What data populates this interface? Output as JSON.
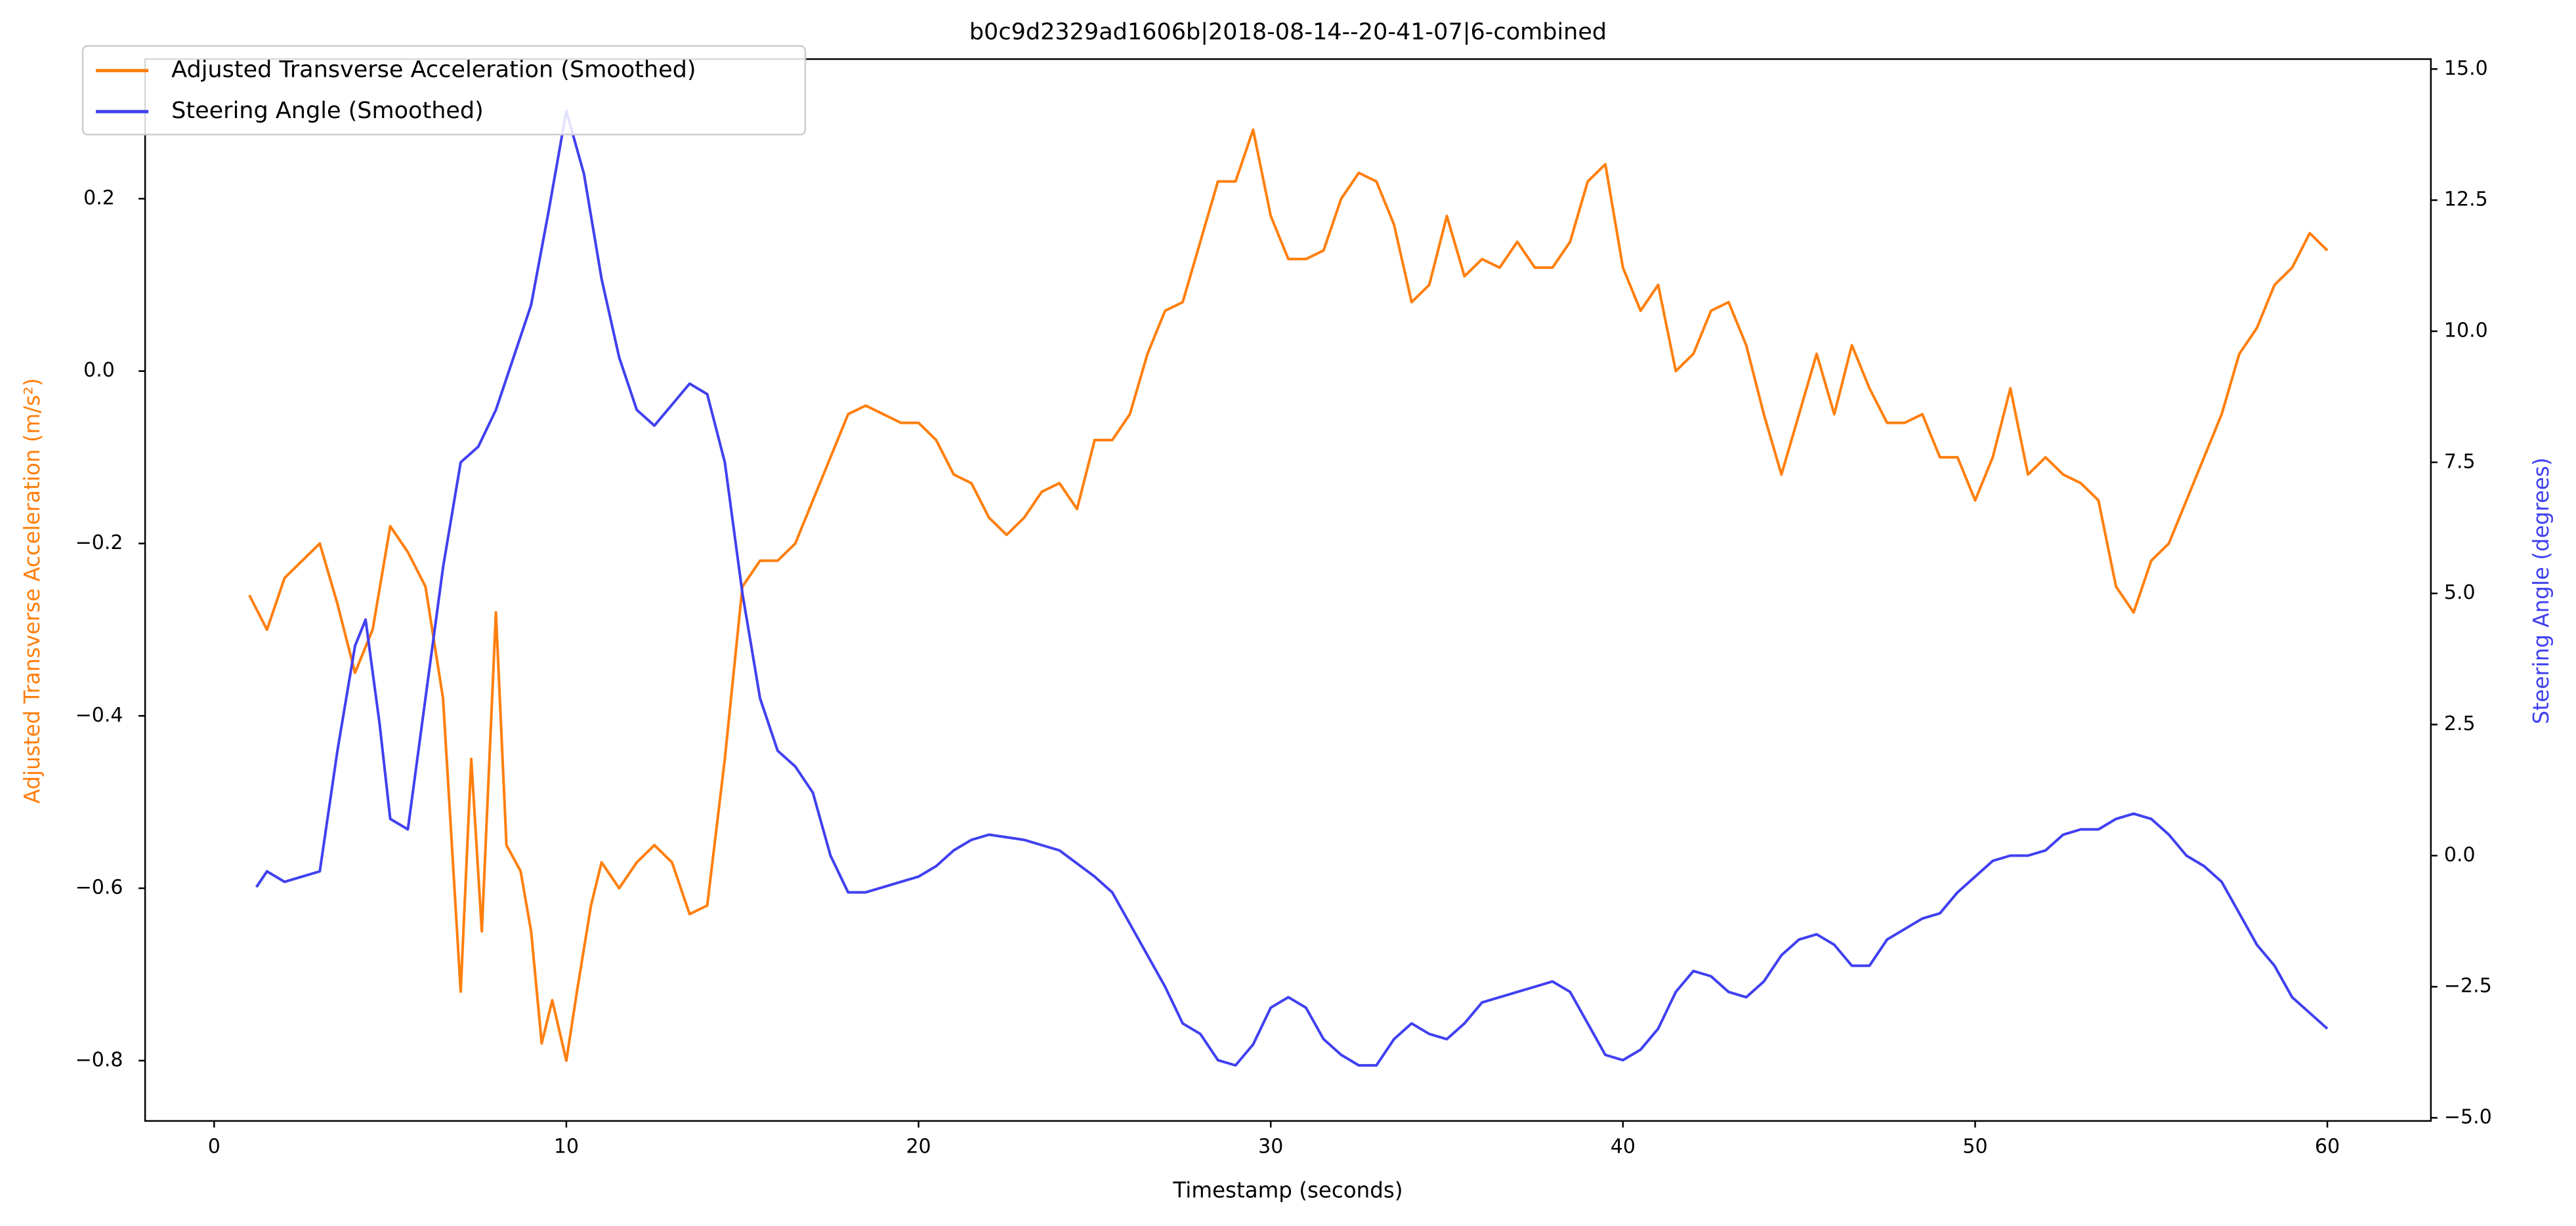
{
  "chart_data": {
    "type": "line",
    "title": "b0c9d2329ad1606b|2018-08-14--20-41-07|6-combined",
    "x_label": "Timestamp (seconds)",
    "y_label": "Adjusted Transverse Acceleration (m/s²)",
    "y2_label": "Steering Angle (degrees)",
    "xlim": [
      -1.96,
      62.94
    ],
    "xticks": [
      0,
      10,
      20,
      30,
      40,
      50,
      60
    ],
    "ylim": [
      -0.87,
      0.362
    ],
    "yticks": [
      {
        "value": -0.8,
        "label": "−0.8"
      },
      {
        "value": -0.6,
        "label": "−0.6"
      },
      {
        "value": -0.4,
        "label": "−0.4"
      },
      {
        "value": -0.2,
        "label": "−0.2"
      },
      {
        "value": 0,
        "label": "0.0"
      },
      0.2
    ],
    "y2lim": [
      -5.06,
      15.19
    ],
    "y2ticks": [
      {
        "value": -5,
        "label": "−5.0"
      },
      {
        "value": -2.5,
        "label": "−2.5"
      },
      {
        "value": 0,
        "label": "0.0"
      },
      2.5,
      {
        "value": 5,
        "label": "5.0"
      },
      7.5,
      {
        "value": 10,
        "label": "10.0"
      },
      12.5,
      {
        "value": 15,
        "label": "15.0"
      }
    ],
    "grid": false,
    "legend": "upper left",
    "series": [
      {
        "name": "Adjusted Transverse Acceleration (Smoothed)",
        "color": "#ff7f0e",
        "axis": "y",
        "x": [
          1,
          1.5,
          2,
          2.5,
          3,
          3.5,
          4,
          4.5,
          5,
          5.5,
          6,
          6.5,
          7,
          7.3,
          7.6,
          8,
          8.3,
          8.7,
          9,
          9.3,
          9.6,
          10,
          10.3,
          10.7,
          11,
          11.5,
          12,
          12.5,
          13,
          13.5,
          14,
          14.5,
          15,
          15.5,
          16,
          16.5,
          17,
          17.5,
          18,
          18.5,
          19,
          19.5,
          20,
          20.5,
          21,
          21.5,
          22,
          22.5,
          23,
          23.5,
          24,
          24.5,
          25,
          25.5,
          26,
          26.5,
          27,
          27.5,
          28,
          28.5,
          29,
          29.5,
          30,
          30.5,
          31,
          31.5,
          32,
          32.5,
          33,
          33.5,
          34,
          34.5,
          35,
          35.5,
          36,
          36.5,
          37,
          37.5,
          38,
          38.5,
          39,
          39.5,
          40,
          40.5,
          41,
          41.5,
          42,
          42.5,
          43,
          43.5,
          44,
          44.5,
          45,
          45.5,
          46,
          46.5,
          47,
          47.5,
          48,
          48.5,
          49,
          49.5,
          50,
          50.5,
          51,
          51.5,
          52,
          52.5,
          53,
          53.5,
          54,
          54.5,
          55,
          55.5,
          56,
          56.5,
          57,
          57.5,
          58,
          58.5,
          59,
          59.5,
          60
        ],
        "values": [
          -0.26,
          -0.3,
          -0.24,
          -0.22,
          -0.2,
          -0.27,
          -0.35,
          -0.3,
          -0.18,
          -0.21,
          -0.25,
          -0.38,
          -0.72,
          -0.45,
          -0.65,
          -0.28,
          -0.55,
          -0.58,
          -0.65,
          -0.78,
          -0.73,
          -0.8,
          -0.72,
          -0.62,
          -0.57,
          -0.6,
          -0.57,
          -0.55,
          -0.57,
          -0.63,
          -0.62,
          -0.45,
          -0.25,
          -0.22,
          -0.22,
          -0.2,
          -0.15,
          -0.1,
          -0.05,
          -0.04,
          -0.05,
          -0.06,
          -0.06,
          -0.08,
          -0.12,
          -0.13,
          -0.17,
          -0.19,
          -0.17,
          -0.14,
          -0.13,
          -0.16,
          -0.08,
          -0.08,
          -0.05,
          0.02,
          0.07,
          0.08,
          0.15,
          0.22,
          0.22,
          0.28,
          0.18,
          0.13,
          0.13,
          0.14,
          0.2,
          0.23,
          0.22,
          0.17,
          0.08,
          0.1,
          0.18,
          0.11,
          0.13,
          0.12,
          0.15,
          0.12,
          0.12,
          0.15,
          0.22,
          0.24,
          0.12,
          0.07,
          0.1,
          0,
          0.02,
          0.07,
          0.08,
          0.03,
          -0.05,
          -0.12,
          -0.05,
          0.02,
          -0.05,
          0.03,
          -0.02,
          -0.06,
          -0.06,
          -0.05,
          -0.1,
          -0.1,
          -0.15,
          -0.1,
          -0.02,
          -0.12,
          -0.1,
          -0.12,
          -0.13,
          -0.15,
          -0.25,
          -0.28,
          -0.22,
          -0.2,
          -0.15,
          -0.1,
          -0.05,
          0.02,
          0.05,
          0.1,
          0.12,
          0.16,
          0.14
        ]
      },
      {
        "name": "Steering Angle (Smoothed)",
        "color": "#4040f0",
        "axis": "y2",
        "x": [
          1.2,
          1.5,
          2,
          2.5,
          3,
          3.5,
          4,
          4.3,
          4.7,
          5,
          5.5,
          6,
          6.5,
          7,
          7.5,
          8,
          8.5,
          9,
          9.5,
          10,
          10.5,
          11,
          11.5,
          12,
          12.5,
          13,
          13.5,
          14,
          14.5,
          15,
          15.5,
          16,
          16.5,
          17,
          17.5,
          18,
          18.5,
          19,
          19.5,
          20,
          20.5,
          21,
          21.5,
          22,
          23,
          24,
          25,
          25.5,
          26,
          26.5,
          27,
          27.5,
          28,
          28.5,
          29,
          29.5,
          30,
          30.5,
          31,
          31.5,
          32,
          32.5,
          33,
          33.5,
          34,
          34.5,
          35,
          35.5,
          36,
          36.5,
          37,
          37.5,
          38,
          38.5,
          39,
          39.5,
          40,
          40.5,
          41,
          41.5,
          42,
          42.5,
          43,
          43.5,
          44,
          44.5,
          45,
          45.5,
          46,
          46.5,
          47,
          47.5,
          48,
          48.5,
          49,
          49.5,
          50,
          50.5,
          51,
          51.5,
          52,
          52.5,
          53,
          53.5,
          54,
          54.5,
          55,
          55.5,
          56,
          56.5,
          57,
          57.5,
          58,
          58.5,
          59,
          59.5,
          60
        ],
        "values": [
          -0.6,
          -0.3,
          -0.5,
          -0.4,
          -0.3,
          2,
          4,
          4.5,
          2.5,
          0.7,
          0.5,
          3,
          5.5,
          7.5,
          7.8,
          8.5,
          9.5,
          10.5,
          12.3,
          14.2,
          13,
          11,
          9.5,
          8.5,
          8.2,
          8.6,
          9,
          8.8,
          7.5,
          5,
          3,
          2,
          1.7,
          1.2,
          0,
          -0.7,
          -0.7,
          -0.6,
          -0.5,
          -0.4,
          -0.2,
          0.1,
          0.3,
          0.4,
          0.3,
          0.1,
          -0.4,
          -0.7,
          -1.3,
          -1.9,
          -2.5,
          -3.2,
          -3.4,
          -3.9,
          -4,
          -3.6,
          -2.9,
          -2.7,
          -2.9,
          -3.5,
          -3.8,
          -4,
          -4,
          -3.5,
          -3.2,
          -3.4,
          -3.5,
          -3.2,
          -2.8,
          -2.7,
          -2.6,
          -2.5,
          -2.4,
          -2.6,
          -3.2,
          -3.8,
          -3.9,
          -3.7,
          -3.3,
          -2.6,
          -2.2,
          -2.3,
          -2.6,
          -2.7,
          -2.4,
          -1.9,
          -1.6,
          -1.5,
          -1.7,
          -2.1,
          -2.1,
          -1.6,
          -1.4,
          -1.2,
          -1.1,
          -0.7,
          -0.4,
          -0.1,
          0,
          0,
          0.1,
          0.4,
          0.5,
          0.5,
          0.7,
          0.8,
          0.7,
          0.4,
          0,
          -0.2,
          -0.5,
          -1.1,
          -1.7,
          -2.1,
          -2.7,
          -3,
          -3.3
        ]
      }
    ]
  }
}
